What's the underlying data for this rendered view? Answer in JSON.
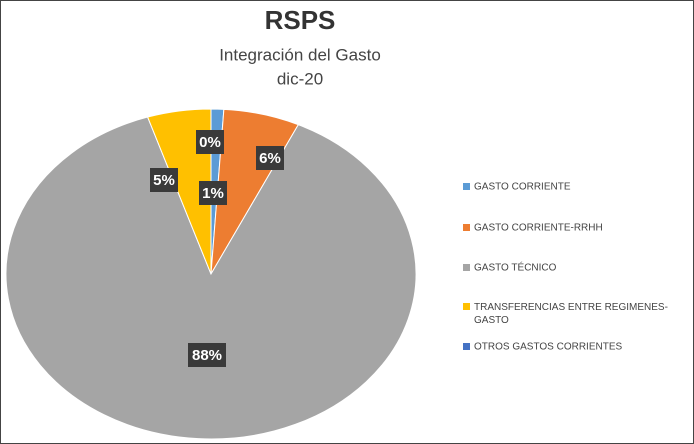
{
  "chart_data": {
    "type": "pie",
    "title": "RSPS",
    "subtitle": "Integración del Gasto",
    "date": "dic-20",
    "categories": [
      "GASTO CORRIENTE",
      "GASTO CORRIENTE-RRHH",
      "GASTO TÉCNICO",
      "TRANSFERENCIAS ENTRE REGIMENES-GASTO",
      "OTROS GASTOS CORRIENTES"
    ],
    "values": [
      1,
      6,
      88,
      5,
      0
    ],
    "value_labels": [
      "1%",
      "6%",
      "88%",
      "5%",
      "0%"
    ],
    "colors": [
      "#5b9bd5",
      "#ed7d31",
      "#a5a5a5",
      "#ffc000",
      "#4472c4"
    ],
    "legend": "right"
  }
}
